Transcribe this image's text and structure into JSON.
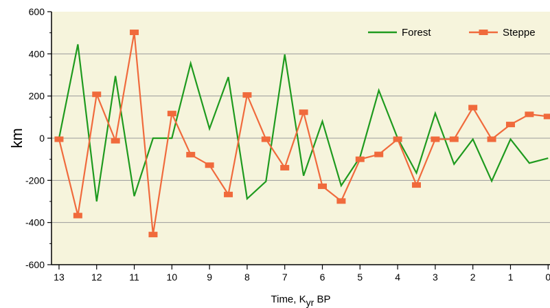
{
  "chart_data": {
    "type": "line",
    "title": "",
    "xlabel": "Time, K",
    "xlabel_sub": "yr",
    "xlabel_suffix": " BP",
    "ylabel": "km",
    "xlim": [
      13.2,
      -0.05
    ],
    "ylim": [
      -600,
      600
    ],
    "xticks": [
      13,
      12,
      11,
      10,
      9,
      8,
      7,
      6,
      5,
      4,
      3,
      2,
      1,
      0
    ],
    "xtick_labels": [
      "13",
      "12",
      "11",
      "10",
      "9",
      "8",
      "7",
      "6",
      "5",
      "4",
      "3",
      "2",
      "1",
      "0"
    ],
    "yticks": [
      -600,
      -400,
      -200,
      0,
      200,
      400,
      600
    ],
    "ytick_labels": [
      "-600",
      "-400",
      "-200",
      "0",
      "200",
      "400",
      "600"
    ],
    "grid": "horizontal",
    "legend_position": "top-right",
    "background_color": "#f6f4dc",
    "series": [
      {
        "name": "Forest",
        "color": "#1e9a1e",
        "marker": "none",
        "points": [
          [
            13,
            0
          ],
          [
            12.5,
            445
          ],
          [
            12,
            -300
          ],
          [
            11.5,
            295
          ],
          [
            11,
            -275
          ],
          [
            10.5,
            0
          ],
          [
            10,
            0
          ],
          [
            9.5,
            355
          ],
          [
            9,
            45
          ],
          [
            8.5,
            290
          ],
          [
            8,
            -287
          ],
          [
            7.5,
            -205
          ],
          [
            7,
            397
          ],
          [
            6.5,
            -178
          ],
          [
            6,
            80
          ],
          [
            5.5,
            -225
          ],
          [
            5,
            -90
          ],
          [
            4.5,
            227
          ],
          [
            4,
            0
          ],
          [
            3.5,
            -165
          ],
          [
            3,
            118
          ],
          [
            2.5,
            -123
          ],
          [
            2,
            -5
          ],
          [
            1.5,
            -203
          ],
          [
            1,
            -5
          ],
          [
            0.5,
            -118
          ],
          [
            0,
            -95
          ]
        ]
      },
      {
        "name": "Steppe",
        "color": "#f06a3c",
        "marker": "square",
        "points": [
          [
            13,
            -5
          ],
          [
            12.5,
            -367
          ],
          [
            12,
            208
          ],
          [
            11.5,
            -12
          ],
          [
            11,
            502
          ],
          [
            10.5,
            -457
          ],
          [
            10,
            117
          ],
          [
            9.5,
            -78
          ],
          [
            9,
            -128
          ],
          [
            8.5,
            -267
          ],
          [
            8,
            205
          ],
          [
            7.5,
            -5
          ],
          [
            7,
            -140
          ],
          [
            6.5,
            123
          ],
          [
            6,
            -228
          ],
          [
            5.5,
            -298
          ],
          [
            5,
            -100
          ],
          [
            4.5,
            -77
          ],
          [
            4,
            -5
          ],
          [
            3.5,
            -222
          ],
          [
            3,
            -5
          ],
          [
            2.5,
            -5
          ],
          [
            2,
            145
          ],
          [
            1.5,
            -5
          ],
          [
            1,
            65
          ],
          [
            0.5,
            113
          ],
          [
            0,
            103
          ]
        ]
      }
    ]
  }
}
